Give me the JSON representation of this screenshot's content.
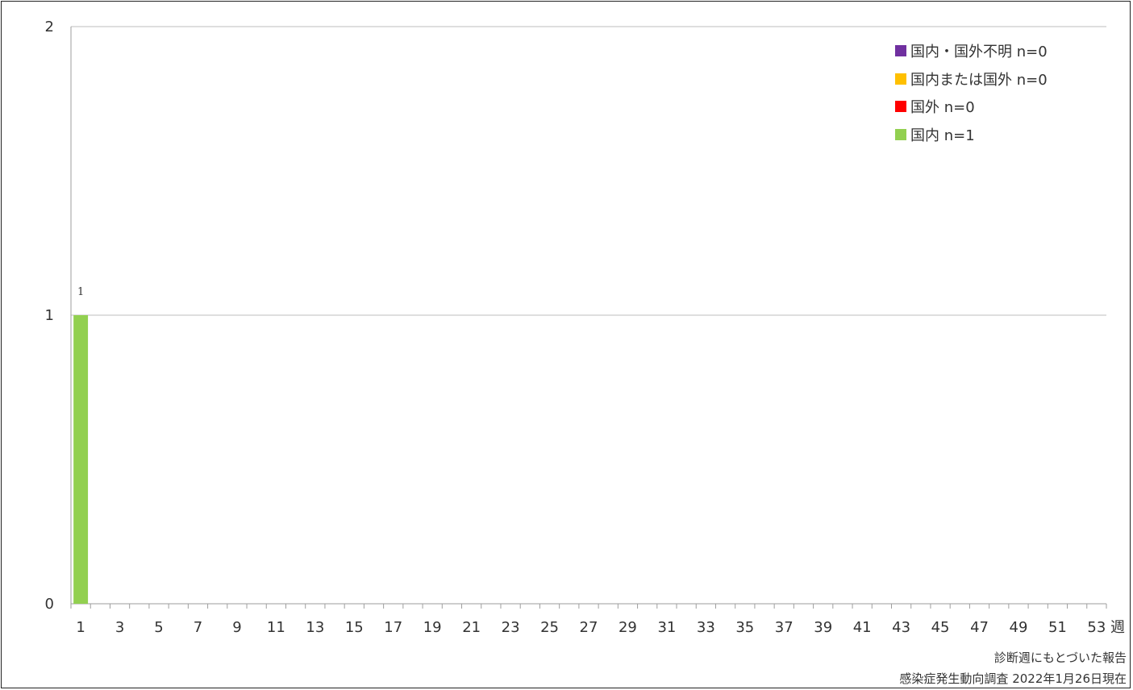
{
  "chart_data": {
    "type": "bar",
    "stacked": true,
    "x_unit_label": "週",
    "weeks": [
      1,
      2,
      3,
      4,
      5,
      6,
      7,
      8,
      9,
      10,
      11,
      12,
      13,
      14,
      15,
      16,
      17,
      18,
      19,
      20,
      21,
      22,
      23,
      24,
      25,
      26,
      27,
      28,
      29,
      30,
      31,
      32,
      33,
      34,
      35,
      36,
      37,
      38,
      39,
      40,
      41,
      42,
      43,
      44,
      45,
      46,
      47,
      48,
      49,
      50,
      51,
      52,
      53
    ],
    "tick_labels": [
      "1",
      "3",
      "5",
      "7",
      "9",
      "11",
      "13",
      "15",
      "17",
      "19",
      "21",
      "23",
      "25",
      "27",
      "29",
      "31",
      "33",
      "35",
      "37",
      "39",
      "41",
      "43",
      "45",
      "47",
      "49",
      "51",
      "53"
    ],
    "ylim": [
      0,
      2
    ],
    "y_ticks": [
      "0",
      "1",
      "2"
    ],
    "grid": true,
    "legend_position": "top-right",
    "series": [
      {
        "name": "国内・国外不明 n=0",
        "color": "#7030a0",
        "values": {}
      },
      {
        "name": "国内または国外 n=0",
        "color": "#ffc000",
        "values": {}
      },
      {
        "name": "国外 n=0",
        "color": "#ff0000",
        "values": {}
      },
      {
        "name": "国内 n=1",
        "color": "#92d050",
        "values": {
          "1": 1
        }
      }
    ],
    "data_labels": [
      {
        "week": 1,
        "text": "1"
      }
    ]
  },
  "notes": {
    "line1": "診断週にもとづいた報告",
    "line2": "感染症発生動向調査 2022年1月26日現在"
  }
}
